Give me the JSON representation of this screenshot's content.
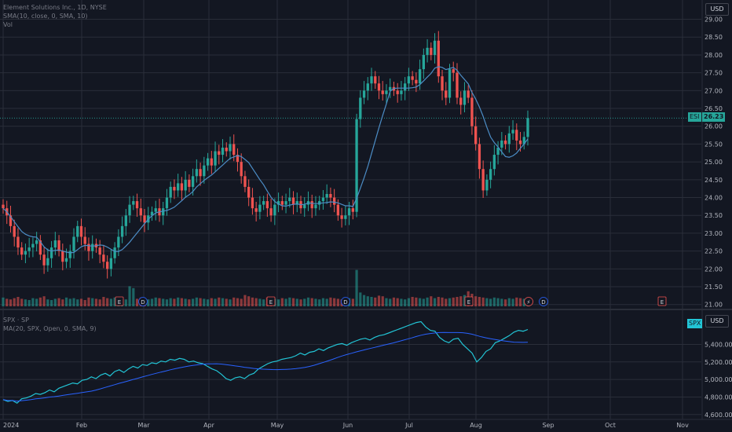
{
  "colors": {
    "bg": "#131722",
    "grid": "#2a2e39",
    "up": "#26a69a",
    "down": "#ef5350",
    "sma": "#2962ff",
    "sma_light": "#4c8dc6",
    "spx": "#22c5d6",
    "text": "#b2b5be"
  },
  "legend": {
    "main_title": "Element Solutions Inc., 1D, NYSE",
    "sma": "SMA(10, close, 0, SMA, 10)",
    "vol": "Vol",
    "spx_title": "SPX · SP",
    "spx_ma": "MA(20, SPX, Open, 0, SMA, 9)"
  },
  "currency_top": "USD",
  "currency_bottom": "USD",
  "last_price_tag": {
    "symbol": "ESI",
    "value": "26.23"
  },
  "spx_tag": {
    "symbol": "SPX"
  },
  "chart_data": [
    {
      "type": "candlestick",
      "title": "Element Solutions Inc., 1D, NYSE",
      "x_labels": [
        "2024",
        "Feb",
        "Mar",
        "Apr",
        "May",
        "Jun",
        "Jul",
        "Aug",
        "Sep",
        "Oct",
        "Nov"
      ],
      "y_ticks": [
        "29.00",
        "28.50",
        "28.00",
        "27.50",
        "27.00",
        "26.50",
        "26.00",
        "25.50",
        "25.00",
        "24.50",
        "24.00",
        "23.50",
        "23.00",
        "22.50",
        "22.00",
        "21.50",
        "21.00"
      ],
      "ylim": [
        20.95,
        29.1
      ],
      "last_price": 26.23,
      "close": [
        23.7,
        23.5,
        23.2,
        22.9,
        22.6,
        22.4,
        22.5,
        22.6,
        22.7,
        22.8,
        22.4,
        22.1,
        22.3,
        22.6,
        22.8,
        22.5,
        22.2,
        22.3,
        22.5,
        22.9,
        23.2,
        22.9,
        22.7,
        22.5,
        22.7,
        22.6,
        22.4,
        22.2,
        22.0,
        22.3,
        22.6,
        22.9,
        23.2,
        23.5,
        23.8,
        23.9,
        23.7,
        23.5,
        23.3,
        23.5,
        23.6,
        23.7,
        23.5,
        23.7,
        24.0,
        24.3,
        24.2,
        24.4,
        24.2,
        24.5,
        24.3,
        24.6,
        24.8,
        24.6,
        24.9,
        25.1,
        24.9,
        25.3,
        25.2,
        25.4,
        25.3,
        25.5,
        25.2,
        25.0,
        24.6,
        24.3,
        24.0,
        23.7,
        23.6,
        23.8,
        23.9,
        23.7,
        23.5,
        23.8,
        23.9,
        23.8,
        23.9,
        24.0,
        23.8,
        23.9,
        23.7,
        23.8,
        23.9,
        23.7,
        23.8,
        23.9,
        24.0,
        24.1,
        24.0,
        23.8,
        23.5,
        23.4,
        23.5,
        23.7,
        23.6,
        26.2,
        26.8,
        27.0,
        27.2,
        27.4,
        27.2,
        27.0,
        26.9,
        27.0,
        27.1,
        27.0,
        26.9,
        27.0,
        27.2,
        27.4,
        27.3,
        27.2,
        27.6,
        28.0,
        28.2,
        28.0,
        28.4,
        27.4,
        27.0,
        26.8,
        27.6,
        27.5,
        26.8,
        26.6,
        27.0,
        26.8,
        26.0,
        25.5,
        24.8,
        24.2,
        24.5,
        24.8,
        25.2,
        25.4,
        25.6,
        25.5,
        25.8,
        25.9,
        25.6,
        25.5,
        25.7,
        26.23
      ],
      "volume": [
        14,
        12,
        11,
        13,
        15,
        12,
        11,
        10,
        13,
        12,
        14,
        16,
        11,
        10,
        12,
        13,
        11,
        14,
        12,
        13,
        11,
        12,
        10,
        14,
        13,
        12,
        11,
        15,
        13,
        12,
        14,
        13,
        12,
        11,
        32,
        29,
        12,
        14,
        13,
        11,
        12,
        14,
        13,
        12,
        11,
        13,
        12,
        14,
        13,
        12,
        11,
        12,
        14,
        13,
        12,
        11,
        13,
        12,
        14,
        13,
        12,
        11,
        14,
        13,
        12,
        18,
        16,
        14,
        13,
        12,
        11,
        14,
        13,
        12,
        11,
        13,
        12,
        14,
        13,
        12,
        11,
        12,
        14,
        13,
        12,
        11,
        13,
        12,
        14,
        13,
        12,
        11,
        14,
        13,
        12,
        58,
        22,
        18,
        16,
        15,
        14,
        17,
        16,
        13,
        12,
        14,
        13,
        12,
        11,
        13,
        15,
        14,
        13,
        12,
        14,
        16,
        13,
        15,
        14,
        12,
        13,
        14,
        15,
        16,
        18,
        24,
        20,
        16,
        15,
        14,
        13,
        12,
        14,
        13,
        12,
        11,
        13,
        12,
        14,
        13,
        12,
        11
      ],
      "event_markers": [
        "E",
        "D",
        "E",
        "D",
        "E",
        "⚡",
        "D",
        "E"
      ]
    },
    {
      "type": "line",
      "title": "SPX · SP",
      "series": [
        {
          "name": "SPX",
          "values": [
            4770,
            4750,
            4760,
            4730,
            4780,
            4790,
            4810,
            4840,
            4830,
            4850,
            4880,
            4860,
            4900,
            4920,
            4940,
            4960,
            4950,
            4990,
            5000,
            5030,
            5010,
            5050,
            5070,
            5040,
            5090,
            5110,
            5080,
            5120,
            5150,
            5130,
            5170,
            5160,
            5190,
            5180,
            5210,
            5200,
            5230,
            5220,
            5240,
            5230,
            5200,
            5210,
            5190,
            5180,
            5150,
            5120,
            5100,
            5060,
            5010,
            4990,
            5020,
            5030,
            5010,
            5050,
            5070,
            5120,
            5150,
            5180,
            5200,
            5210,
            5230,
            5240,
            5250,
            5270,
            5300,
            5280,
            5310,
            5320,
            5350,
            5330,
            5360,
            5380,
            5400,
            5410,
            5390,
            5420,
            5440,
            5460,
            5470,
            5450,
            5480,
            5500,
            5510,
            5530,
            5550,
            5570,
            5590,
            5610,
            5630,
            5650,
            5660,
            5600,
            5560,
            5550,
            5480,
            5440,
            5420,
            5460,
            5470,
            5400,
            5350,
            5300,
            5200,
            5250,
            5320,
            5350,
            5420,
            5440,
            5470,
            5500,
            5540,
            5560,
            5550,
            5570
          ]
        }
      ],
      "y_ticks": [
        "5,400.00",
        "5,200.00",
        "5,000.00",
        "4,800.00",
        "4,600.00"
      ],
      "ylim": [
        4580,
        5700
      ]
    }
  ]
}
